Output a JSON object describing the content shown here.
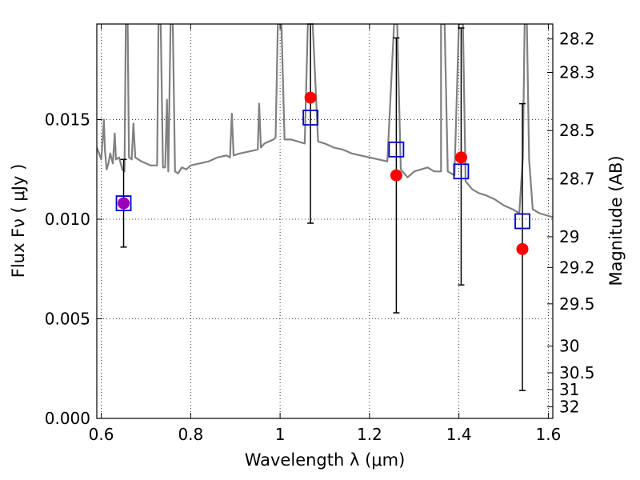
{
  "chart_data": {
    "type": "scatter",
    "xlabel": "Wavelength  λ (μm)",
    "ylabel": "Flux  Fν  ( μJy )",
    "y2label": "Magnitude (AB)",
    "xlim": [
      0.59,
      1.61
    ],
    "ylim": [
      0.0,
      0.0198
    ],
    "x_ticks": [
      0.6,
      0.8,
      1.0,
      1.2,
      1.4,
      1.6
    ],
    "x_tick_labels": [
      "0.6",
      "0.8",
      "1",
      "1.2",
      "1.4",
      "1.6"
    ],
    "y_ticks": [
      0.0,
      0.005,
      0.01,
      0.015
    ],
    "y_tick_labels": [
      "0.000",
      "0.005",
      "0.010",
      "0.015"
    ],
    "y2_ticks": [
      {
        "label": "28.2",
        "flux": 0.01905
      },
      {
        "label": "28.3",
        "flux": 0.01737
      },
      {
        "label": "28.5",
        "flux": 0.01445
      },
      {
        "label": "28.7",
        "flux": 0.01202
      },
      {
        "label": "29",
        "flux": 0.00912
      },
      {
        "label": "29.2",
        "flux": 0.00758
      },
      {
        "label": "29.5",
        "flux": 0.00575
      },
      {
        "label": "30",
        "flux": 0.00363
      },
      {
        "label": "30.5",
        "flux": 0.00229
      },
      {
        "label": "31",
        "flux": 0.00145
      },
      {
        "label": "32",
        "flux": 0.00058
      }
    ],
    "grid": true,
    "colors": {
      "spectrum": "#808080",
      "observed": "#ff0000",
      "model": "#0000cc",
      "overlap": "#9900bb",
      "errorbar": "#000000"
    },
    "series": [
      {
        "marker": "circle",
        "color": "#ff0000",
        "x": [
          0.65,
          1.068,
          1.26,
          1.405,
          1.542
        ],
        "y": [
          0.0108,
          0.0161,
          0.0122,
          0.0131,
          0.0085
        ],
        "yerr_low": [
          0.0086,
          0.0098,
          0.0053,
          0.0067,
          0.0014
        ],
        "yerr_high": [
          0.013,
          0.0198,
          0.0191,
          0.0196,
          0.0158
        ]
      },
      {
        "marker": "square",
        "color": "#0000cc",
        "x": [
          0.65,
          1.068,
          1.26,
          1.405,
          1.542
        ],
        "y": [
          0.0108,
          0.0151,
          0.0135,
          0.0124,
          0.0099
        ]
      },
      {
        "type": "line",
        "color": "#808080",
        "points": [
          [
            0.59,
            0.0136
          ],
          [
            0.6,
            0.013
          ],
          [
            0.603,
            0.014
          ],
          [
            0.606,
            0.015
          ],
          [
            0.608,
            0.0135
          ],
          [
            0.612,
            0.0125
          ],
          [
            0.616,
            0.0128
          ],
          [
            0.62,
            0.0133
          ],
          [
            0.626,
            0.0128
          ],
          [
            0.63,
            0.0143
          ],
          [
            0.633,
            0.013
          ],
          [
            0.64,
            0.0131
          ],
          [
            0.647,
            0.0125
          ],
          [
            0.652,
            0.0124
          ],
          [
            0.655,
            0.0198
          ],
          [
            0.659,
            0.0198
          ],
          [
            0.662,
            0.0131
          ],
          [
            0.668,
            0.013
          ],
          [
            0.672,
            0.0148
          ],
          [
            0.676,
            0.0131
          ],
          [
            0.69,
            0.0129
          ],
          [
            0.71,
            0.0127
          ],
          [
            0.725,
            0.0127
          ],
          [
            0.728,
            0.0198
          ],
          [
            0.733,
            0.0198
          ],
          [
            0.738,
            0.0126
          ],
          [
            0.743,
            0.0126
          ],
          [
            0.747,
            0.016
          ],
          [
            0.75,
            0.0124
          ],
          [
            0.755,
            0.0198
          ],
          [
            0.76,
            0.0198
          ],
          [
            0.765,
            0.0124
          ],
          [
            0.772,
            0.0123
          ],
          [
            0.78,
            0.0126
          ],
          [
            0.79,
            0.0125
          ],
          [
            0.8,
            0.0127
          ],
          [
            0.82,
            0.0128
          ],
          [
            0.84,
            0.0129
          ],
          [
            0.86,
            0.0131
          ],
          [
            0.88,
            0.0132
          ],
          [
            0.888,
            0.0131
          ],
          [
            0.892,
            0.0153
          ],
          [
            0.896,
            0.0132
          ],
          [
            0.91,
            0.0133
          ],
          [
            0.93,
            0.0134
          ],
          [
            0.95,
            0.0135
          ],
          [
            0.953,
            0.0158
          ],
          [
            0.957,
            0.0136
          ],
          [
            0.965,
            0.0138
          ],
          [
            0.975,
            0.0139
          ],
          [
            0.985,
            0.014
          ],
          [
            0.99,
            0.0141
          ],
          [
            0.995,
            0.0198
          ],
          [
            1.003,
            0.0198
          ],
          [
            1.01,
            0.014
          ],
          [
            1.025,
            0.014
          ],
          [
            1.04,
            0.0139
          ],
          [
            1.055,
            0.0138
          ],
          [
            1.062,
            0.0198
          ],
          [
            1.073,
            0.0198
          ],
          [
            1.085,
            0.0139
          ],
          [
            1.1,
            0.0138
          ],
          [
            1.12,
            0.0136
          ],
          [
            1.14,
            0.0135
          ],
          [
            1.16,
            0.0133
          ],
          [
            1.18,
            0.0132
          ],
          [
            1.2,
            0.0131
          ],
          [
            1.22,
            0.013
          ],
          [
            1.24,
            0.0129
          ],
          [
            1.255,
            0.0198
          ],
          [
            1.262,
            0.0198
          ],
          [
            1.27,
            0.0125
          ],
          [
            1.285,
            0.0121
          ],
          [
            1.3,
            0.0124
          ],
          [
            1.315,
            0.0125
          ],
          [
            1.33,
            0.0126
          ],
          [
            1.345,
            0.0124
          ],
          [
            1.36,
            0.0124
          ],
          [
            1.36,
            0.0198
          ],
          [
            1.368,
            0.0198
          ],
          [
            1.375,
            0.0124
          ],
          [
            1.39,
            0.0122
          ],
          [
            1.4,
            0.0198
          ],
          [
            1.409,
            0.0198
          ],
          [
            1.415,
            0.0119
          ],
          [
            1.43,
            0.0115
          ],
          [
            1.445,
            0.0113
          ],
          [
            1.46,
            0.0112
          ],
          [
            1.48,
            0.011
          ],
          [
            1.5,
            0.0107
          ],
          [
            1.52,
            0.0105
          ],
          [
            1.535,
            0.0103
          ],
          [
            1.543,
            0.0131
          ],
          [
            1.547,
            0.0198
          ],
          [
            1.552,
            0.0198
          ],
          [
            1.557,
            0.013
          ],
          [
            1.565,
            0.0105
          ],
          [
            1.58,
            0.0103
          ],
          [
            1.595,
            0.0102
          ],
          [
            1.61,
            0.0101
          ]
        ]
      }
    ]
  }
}
